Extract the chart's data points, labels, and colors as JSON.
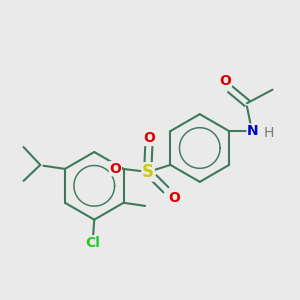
{
  "bg_color": "#eaeaea",
  "bond_color": "#3d7a5c",
  "bond_width": 1.5,
  "colors": {
    "O": "#dd0000",
    "N": "#0000cc",
    "S": "#cccc00",
    "Cl": "#22cc22",
    "C": "#3d7a5c",
    "H": "#777777"
  },
  "font_size": 9,
  "font_size_atom": 10,
  "ring_r": 0.85
}
